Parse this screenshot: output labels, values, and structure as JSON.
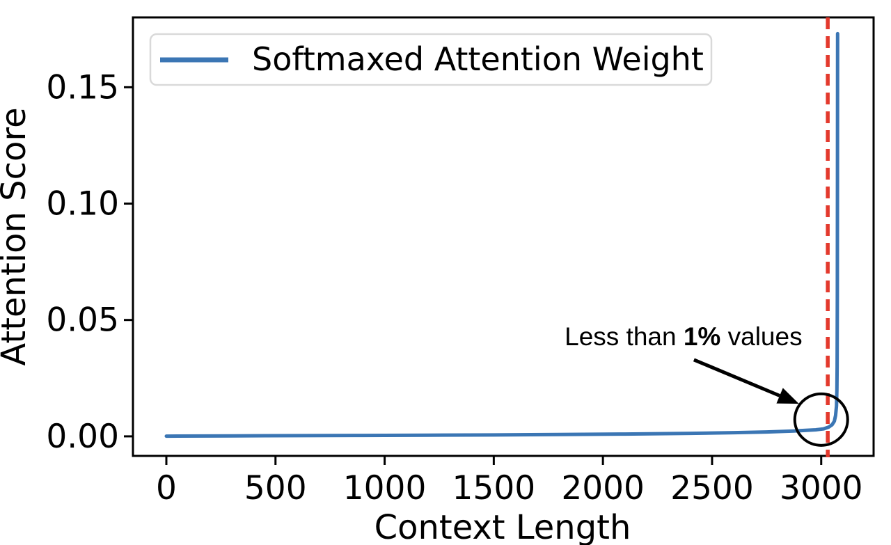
{
  "figure": {
    "background": "#ffffff",
    "axis_color": "#000000",
    "text_color": "#000000"
  },
  "chart_data": {
    "type": "line",
    "title": "",
    "xlabel": "Context Length",
    "ylabel": "Attention Score",
    "grid": false,
    "xlim": [
      -153,
      3240
    ],
    "ylim": [
      -0.0084,
      0.18
    ],
    "xticks": [
      {
        "value": 0,
        "label": "0"
      },
      {
        "value": 500,
        "label": "500"
      },
      {
        "value": 1000,
        "label": "1000"
      },
      {
        "value": 1500,
        "label": "1500"
      },
      {
        "value": 2000,
        "label": "2000"
      },
      {
        "value": 2500,
        "label": "2500"
      },
      {
        "value": 3000,
        "label": "3000"
      }
    ],
    "yticks": [
      {
        "value": 0.0,
        "label": "0.00"
      },
      {
        "value": 0.05,
        "label": "0.05"
      },
      {
        "value": 0.1,
        "label": "0.10"
      },
      {
        "value": 0.15,
        "label": "0.15"
      }
    ],
    "legend": {
      "position": "upper-left",
      "entries": [
        {
          "label": "Softmaxed Attention Weight",
          "color": "#3b76b4"
        }
      ]
    },
    "series": [
      {
        "name": "Softmaxed Attention Weight",
        "color": "#3b76b4",
        "points": [
          [
            0,
            0.0001
          ],
          [
            300,
            0.0002
          ],
          [
            600,
            0.0003
          ],
          [
            900,
            0.0004
          ],
          [
            1200,
            0.0005
          ],
          [
            1500,
            0.0006
          ],
          [
            1800,
            0.0008
          ],
          [
            2100,
            0.001
          ],
          [
            2400,
            0.0013
          ],
          [
            2600,
            0.0016
          ],
          [
            2750,
            0.0019
          ],
          [
            2875,
            0.0023
          ],
          [
            2975,
            0.0028
          ],
          [
            3010,
            0.0032
          ],
          [
            3035,
            0.004
          ],
          [
            3050,
            0.005
          ],
          [
            3060,
            0.0065
          ],
          [
            3066,
            0.009
          ],
          [
            3070,
            0.013
          ],
          [
            3072,
            0.02
          ],
          [
            3073,
            0.03
          ],
          [
            3074,
            0.06
          ],
          [
            3074.5,
            0.11
          ],
          [
            3075,
            0.173
          ]
        ],
        "peak": {
          "x": 3075,
          "y": 0.173
        }
      }
    ],
    "vline": {
      "x": 3030,
      "color": "#e3392d",
      "style": "dashed"
    },
    "annotation": {
      "parts": [
        {
          "text": "Less than ",
          "bold": false
        },
        {
          "text": "1%",
          "bold": true
        },
        {
          "text": " values",
          "bold": false
        }
      ],
      "text_pos": [
        2369,
        0.043
      ],
      "arrow_start": [
        2417,
        0.0329
      ],
      "arrow_end": [
        2898,
        0.014
      ],
      "circle_center": [
        3000,
        0.0072
      ],
      "color": "#000000"
    }
  }
}
